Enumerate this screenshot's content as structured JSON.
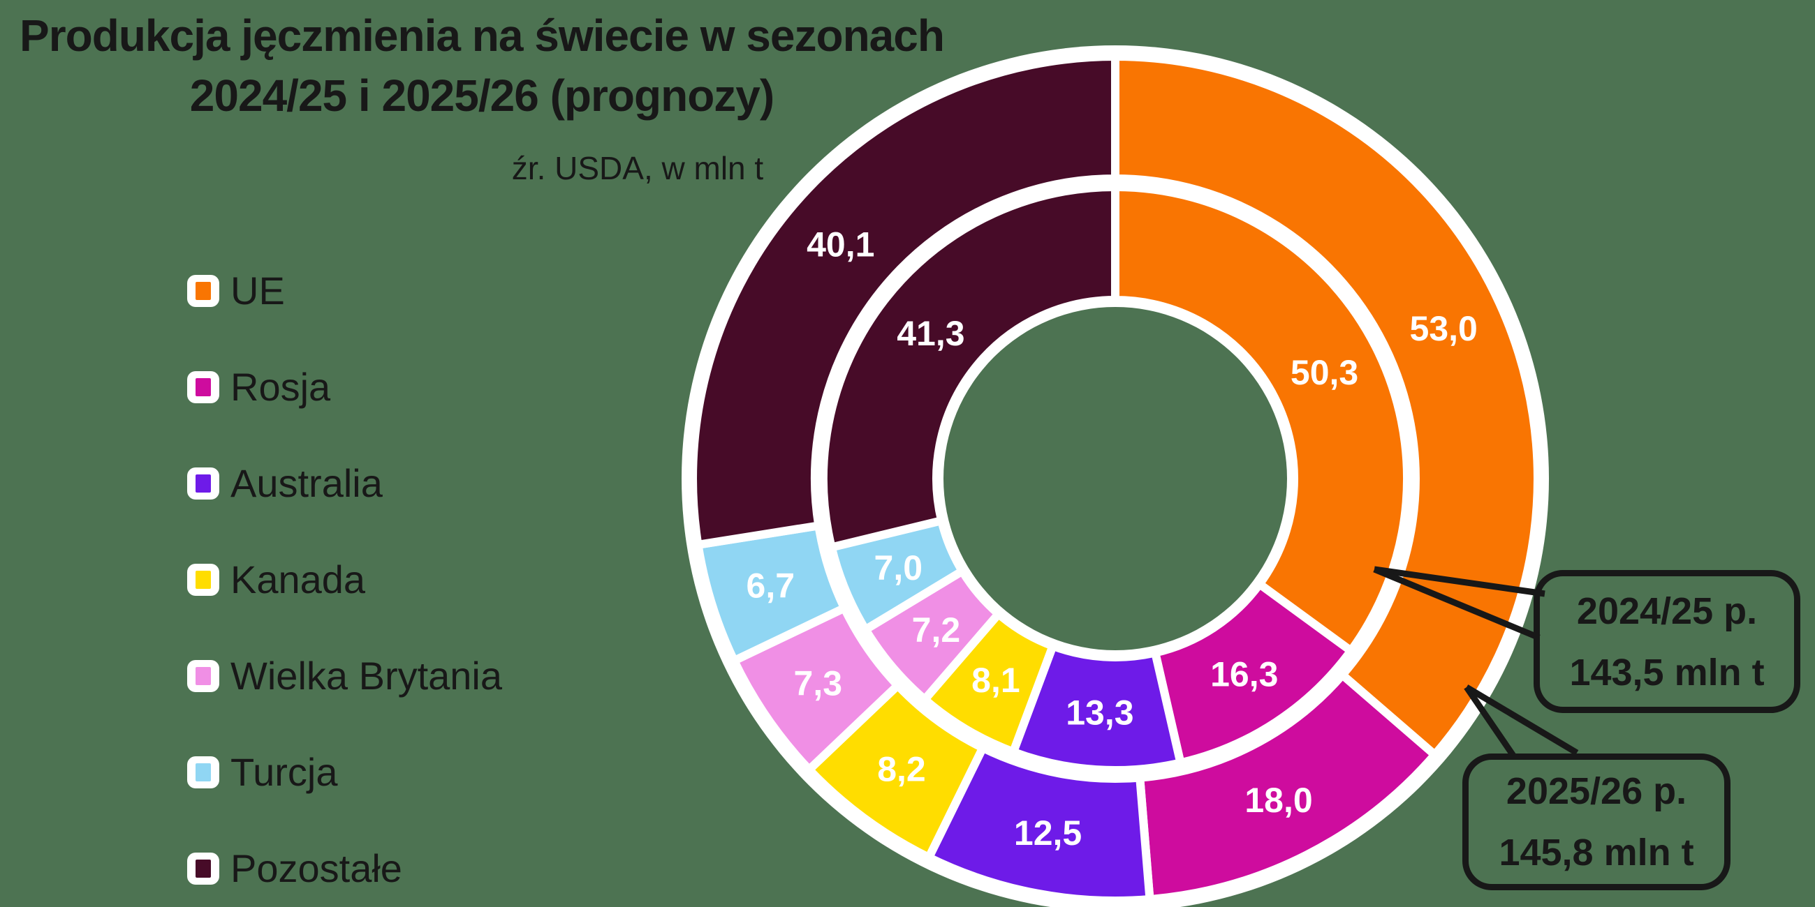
{
  "title": {
    "line1": "Produkcja jęczmienia na świecie w sezonach",
    "line2": "2024/25 i 2025/26 (prognozy)"
  },
  "subtitle": "źr. USDA, w mln t",
  "legend": {
    "items": [
      "UE",
      "Rosja",
      "Australia",
      "Kanada",
      "Wielka Brytania",
      "Turcja",
      "Pozostałe"
    ]
  },
  "callouts": {
    "inner_ring": {
      "line1": "2024/25 p.",
      "line2": "143,5 mln t"
    },
    "outer_ring": {
      "line1": "2025/26 p.",
      "line2": "145,8 mln t"
    }
  },
  "chart_data": {
    "type": "pie",
    "subtype": "double-donut",
    "title": "Produkcja jęczmienia na świecie w sezonach 2024/25 i 2025/26 (prognozy)",
    "source": "źr. USDA, w mln t",
    "unit": "mln t",
    "categories": [
      "UE",
      "Rosja",
      "Australia",
      "Kanada",
      "Wielka Brytania",
      "Turcja",
      "Pozostałe"
    ],
    "colors": [
      "#F97502",
      "#CE0C9E",
      "#6E1BE8",
      "#FFDD00",
      "#F08FE5",
      "#90D6F3",
      "#470B28"
    ],
    "series": [
      {
        "name": "2024/25 p.",
        "ring": "inner",
        "total": 143.5,
        "values": [
          50.3,
          16.3,
          13.3,
          8.1,
          7.2,
          7.0,
          41.3
        ]
      },
      {
        "name": "2025/26 p.",
        "ring": "outer",
        "total": 145.8,
        "values": [
          53.0,
          18.0,
          12.5,
          8.2,
          7.3,
          6.7,
          40.1
        ]
      }
    ],
    "start_angle_deg": 0,
    "direction": "clockwise",
    "legend_position": "left",
    "value_label_color": "#FFFFFF"
  },
  "colors": {
    "background": "#4D7352",
    "ink": "#181818",
    "chip_background": "#FFFFFF"
  }
}
